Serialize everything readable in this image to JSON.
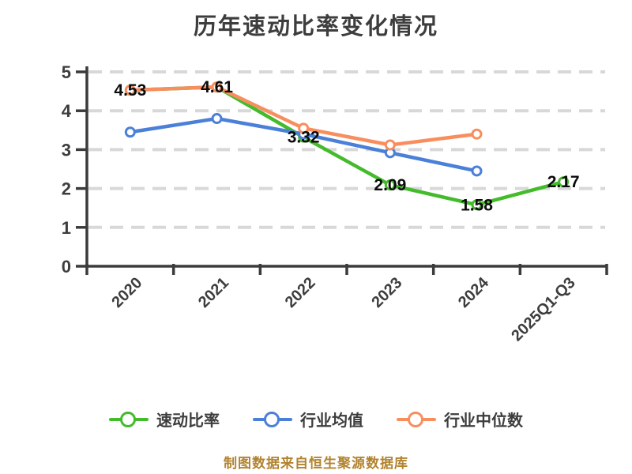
{
  "chart": {
    "title": "历年速动比率变化情况",
    "source_note": "制图数据来自恒生聚源数据库"
  },
  "chart_data": {
    "type": "line",
    "title": "历年速动比率变化情况",
    "categories": [
      "2020",
      "2021",
      "2022",
      "2023",
      "2024",
      "2025Q1-Q3"
    ],
    "series": [
      {
        "name": "速动比率",
        "color": "#43bb2b",
        "values": [
          4.53,
          4.61,
          3.32,
          2.09,
          1.58,
          2.17
        ],
        "labeled": true,
        "labels": [
          "4.53",
          "4.61",
          "3.32",
          "2.09",
          "1.58",
          "2.17"
        ]
      },
      {
        "name": "行业均值",
        "color": "#4b80d8",
        "values": [
          3.45,
          3.8,
          3.4,
          2.92,
          2.45,
          null
        ],
        "labeled": false
      },
      {
        "name": "行业中位数",
        "color": "#f88e5e",
        "values": [
          4.53,
          4.61,
          3.55,
          3.12,
          3.4,
          null
        ],
        "labeled": false
      }
    ],
    "ylim": [
      0,
      5
    ],
    "yticks": [
      0,
      1,
      2,
      3,
      4,
      5
    ],
    "xlabel": "",
    "ylabel": "",
    "grid": "horizontal-dashed",
    "legend_position": "bottom",
    "x_tick_rotation": -45
  },
  "style": {
    "axis_color": "#3b3b3b",
    "grid_color": "#d8d8d8",
    "tick_label_color": "#3d3d3d",
    "point_label_color": "#0b0b0b",
    "title_color": "#3d3d3d",
    "source_color": "#b2832f",
    "background": "#ffffff"
  }
}
